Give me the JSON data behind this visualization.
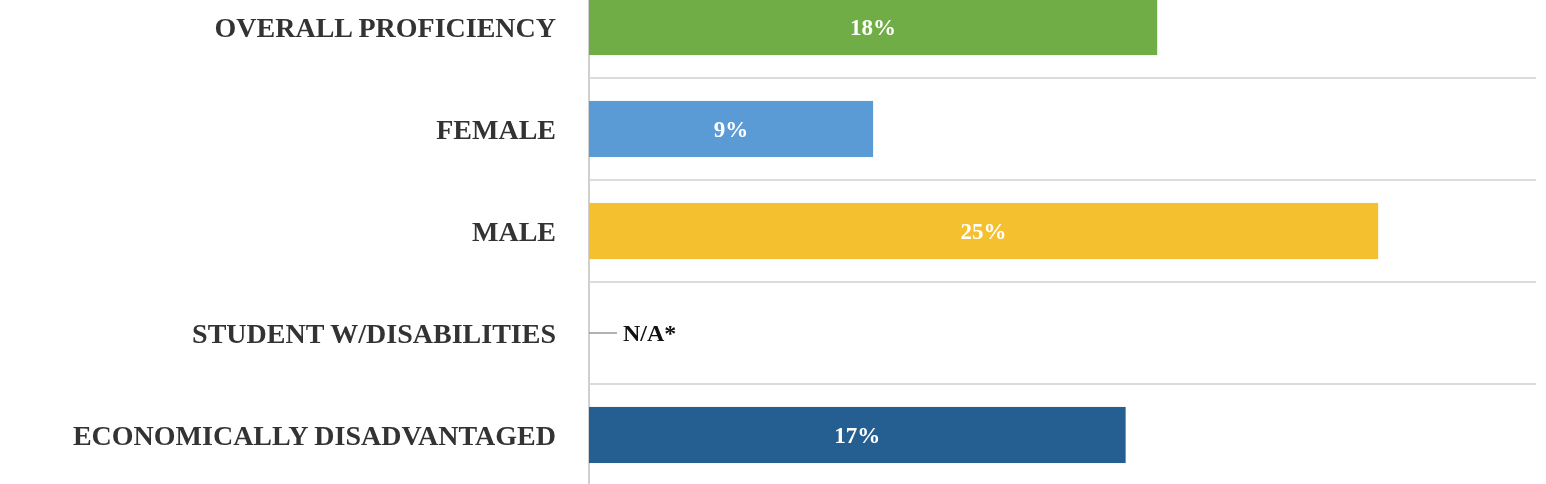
{
  "chart_data": {
    "type": "bar",
    "orientation": "horizontal",
    "categories": [
      "OVERALL PROFICIENCY",
      "FEMALE",
      "MALE",
      "STUDENT W/DISABILITIES",
      "ECONOMICALLY DISADVANTAGED"
    ],
    "values": [
      18,
      9,
      25,
      null,
      17
    ],
    "colors": [
      "#70ad47",
      "#5b9bd5",
      "#f5c030",
      null,
      "#255e91"
    ],
    "value_labels": [
      "18%",
      "9%",
      "25%",
      "N/A*",
      "17%"
    ],
    "xlim": [
      0,
      30
    ],
    "tick_labels": "y",
    "grid": "y"
  }
}
